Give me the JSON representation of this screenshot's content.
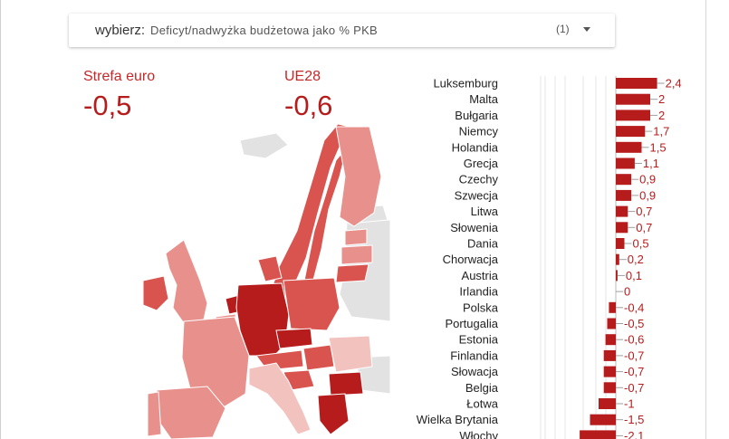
{
  "selector": {
    "label": "wybierz",
    "value": "Deficyt/nadwyżka budżetowa jako % PKB",
    "count": "(1)"
  },
  "kpis": [
    {
      "label": "Strefa euro",
      "value": "-0,5"
    },
    {
      "label": "UE28",
      "value": "-0,6"
    }
  ],
  "colors": {
    "accent": "#c62828",
    "bar": "#b71c1c",
    "map_dark": "#b71c1c",
    "map_mid": "#d9534f",
    "map_light": "#e8908c",
    "map_pale": "#f2c2bf",
    "map_neutral": "#e2e2e2",
    "sea": "#ffffff"
  },
  "chart_data": {
    "type": "bar",
    "orientation": "horizontal",
    "categories": [
      "Luksemburg",
      "Malta",
      "Bułgaria",
      "Niemcy",
      "Holandia",
      "Grecja",
      "Czechy",
      "Szwecja",
      "Litwa",
      "Słowenia",
      "Dania",
      "Chorwacja",
      "Austria",
      "Irlandia",
      "Polska",
      "Portugalia",
      "Estonia",
      "Finlandia",
      "Słowacja",
      "Belgia",
      "Łotwa",
      "Wielka Brytania",
      "Włochy"
    ],
    "values": [
      2.4,
      2,
      2,
      1.7,
      1.5,
      1.1,
      0.9,
      0.9,
      0.7,
      0.7,
      0.5,
      0.2,
      0.1,
      0,
      -0.4,
      -0.5,
      -0.6,
      -0.7,
      -0.7,
      -0.7,
      -1,
      -1.5,
      -2.1
    ],
    "value_labels": [
      "2,4",
      "2",
      "2",
      "1,7",
      "1,5",
      "1,1",
      "0,9",
      "0,9",
      "0,7",
      "0,7",
      "0,5",
      "0,2",
      "0,1",
      "0",
      "-0,4",
      "-0,5",
      "-0,6",
      "-0,7",
      "-0,7",
      "-0,7",
      "-1",
      "-1,5",
      "-2,1"
    ],
    "xlim": [
      -3.5,
      3
    ],
    "grid": true
  },
  "map": {
    "type": "choropleth",
    "regions": [
      {
        "name": "Norwegia",
        "shade": "map_mid"
      },
      {
        "name": "Szwecja",
        "shade": "map_mid"
      },
      {
        "name": "Finlandia",
        "shade": "map_light"
      },
      {
        "name": "Islandia",
        "shade": "map_neutral"
      },
      {
        "name": "Irlandia",
        "shade": "map_mid"
      },
      {
        "name": "Wielka Brytania",
        "shade": "map_light"
      },
      {
        "name": "Hiszpania",
        "shade": "map_light"
      },
      {
        "name": "Portugalia",
        "shade": "map_light"
      },
      {
        "name": "Francja",
        "shade": "map_light"
      },
      {
        "name": "Belgia",
        "shade": "map_light"
      },
      {
        "name": "Holandia",
        "shade": "map_dark"
      },
      {
        "name": "Niemcy",
        "shade": "map_dark"
      },
      {
        "name": "Dania",
        "shade": "map_mid"
      },
      {
        "name": "Polska",
        "shade": "map_mid"
      },
      {
        "name": "Czechy",
        "shade": "map_dark"
      },
      {
        "name": "Austria",
        "shade": "map_mid"
      },
      {
        "name": "Włochy",
        "shade": "map_pale"
      },
      {
        "name": "Estonia",
        "shade": "map_light"
      },
      {
        "name": "Łotwa",
        "shade": "map_light"
      },
      {
        "name": "Litwa",
        "shade": "map_mid"
      },
      {
        "name": "Rumunia",
        "shade": "map_pale"
      },
      {
        "name": "Bułgaria",
        "shade": "map_dark"
      },
      {
        "name": "Grecja",
        "shade": "map_dark"
      },
      {
        "name": "Węgry",
        "shade": "map_mid"
      },
      {
        "name": "Chorwacja",
        "shade": "map_mid"
      },
      {
        "name": "Ukraina",
        "shade": "map_neutral"
      },
      {
        "name": "Białoruś",
        "shade": "map_neutral"
      },
      {
        "name": "Turcja",
        "shade": "map_neutral"
      }
    ]
  }
}
